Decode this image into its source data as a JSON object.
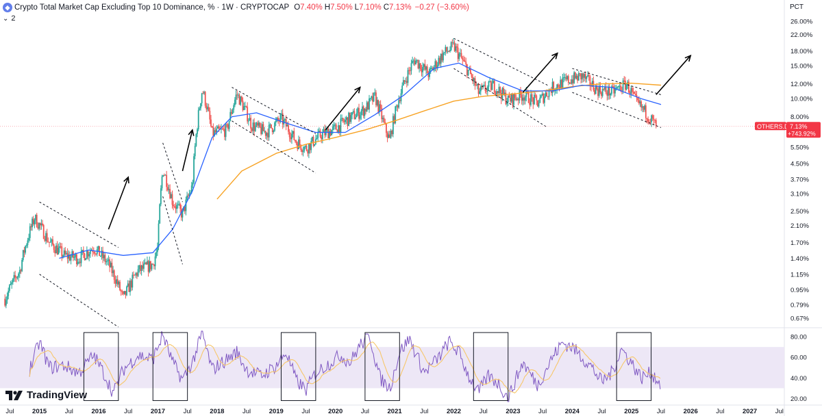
{
  "header": {
    "title": "Crypto Total Market Cap Excluding Top 10 Dominance, % · 1W · CRYPTOCAP",
    "o_label": "O",
    "o_value": "7.40%",
    "h_label": "H",
    "h_value": "7.50%",
    "l_label": "L",
    "l_value": "7.10%",
    "c_label": "C",
    "c_value": "7.13%",
    "change": "−0.27 (−3.60%)",
    "indicator_count": "2"
  },
  "price_scale": {
    "unit_label": "PCT",
    "ticks": [
      "26.00%",
      "22.00%",
      "18.00%",
      "15.00%",
      "12.00%",
      "10.00%",
      "8.00%",
      "6.50%",
      "5.50%",
      "4.50%",
      "3.70%",
      "3.10%",
      "2.50%",
      "2.10%",
      "1.70%",
      "1.40%",
      "1.15%",
      "0.95%",
      "0.79%",
      "0.67%"
    ]
  },
  "price_badge": {
    "symbol": "OTHERS.D",
    "value": "7.13%",
    "change": "+743.92%"
  },
  "rsi_scale": {
    "ticks": [
      "80.00",
      "60.00",
      "40.00",
      "20.00"
    ]
  },
  "time_axis": {
    "labels": [
      "Jul",
      "2015",
      "Jul",
      "2016",
      "Jul",
      "2017",
      "Jul",
      "2018",
      "Jul",
      "2019",
      "Jul",
      "2020",
      "Jul",
      "2021",
      "Jul",
      "2022",
      "Jul",
      "2023",
      "Jul",
      "2024",
      "Jul",
      "2025",
      "Jul",
      "2026",
      "Jul",
      "2027",
      "Jul"
    ]
  },
  "brand": {
    "name": "TradingView"
  },
  "colors": {
    "up": "#26a69a",
    "down": "#ef5350",
    "ma_fast": "#2962ff",
    "ma_slow": "#f7a325",
    "rsi": "#7e57c2",
    "rsi_ma": "#f7c76a",
    "rsi_band": "#ede7f6",
    "badge": "#f23645"
  },
  "chart_data": [
    {
      "type": "candlestick",
      "title": "Crypto Total Market Cap Excluding Top 10 Dominance, %",
      "y_scale": "log",
      "ylim": [
        0.6,
        28
      ],
      "x_range": [
        "2014-05",
        "2027-08"
      ],
      "anchors": [
        [
          "2014-06",
          0.85
        ],
        [
          "2014-09",
          1.2
        ],
        [
          "2014-12",
          2.3
        ],
        [
          "2015-03",
          1.7
        ],
        [
          "2015-06",
          1.45
        ],
        [
          "2015-09",
          1.4
        ],
        [
          "2015-12",
          1.6
        ],
        [
          "2016-03",
          1.3
        ],
        [
          "2016-06",
          0.85
        ],
        [
          "2016-09",
          1.2
        ],
        [
          "2016-12",
          1.3
        ],
        [
          "2017-01",
          1.6
        ],
        [
          "2017-02",
          4.2
        ],
        [
          "2017-04",
          2.8
        ],
        [
          "2017-06",
          2.4
        ],
        [
          "2017-08",
          3.4
        ],
        [
          "2017-10",
          11.2
        ],
        [
          "2017-12",
          6.5
        ],
        [
          "2018-03",
          6.8
        ],
        [
          "2018-05",
          10.6
        ],
        [
          "2018-08",
          7.2
        ],
        [
          "2018-11",
          6.6
        ],
        [
          "2019-02",
          7.8
        ],
        [
          "2019-05",
          5.9
        ],
        [
          "2019-07",
          5.4
        ],
        [
          "2019-10",
          6.4
        ],
        [
          "2020-01",
          6.9
        ],
        [
          "2020-03",
          7.6
        ],
        [
          "2020-07",
          8.8
        ],
        [
          "2020-09",
          10.2
        ],
        [
          "2020-11",
          7.0
        ],
        [
          "2020-12",
          6.0
        ],
        [
          "2021-02",
          10.3
        ],
        [
          "2021-05",
          16.2
        ],
        [
          "2021-08",
          13.5
        ],
        [
          "2021-11",
          17.5
        ],
        [
          "2022-01",
          19.0
        ],
        [
          "2022-03",
          15.5
        ],
        [
          "2022-06",
          10.8
        ],
        [
          "2022-09",
          11.8
        ],
        [
          "2022-12",
          9.8
        ],
        [
          "2023-03",
          10.5
        ],
        [
          "2023-06",
          9.5
        ],
        [
          "2023-09",
          11.5
        ],
        [
          "2023-12",
          12.5
        ],
        [
          "2024-03",
          13.2
        ],
        [
          "2024-06",
          11.2
        ],
        [
          "2024-09",
          10.8
        ],
        [
          "2024-12",
          12.0
        ],
        [
          "2025-02",
          9.5
        ],
        [
          "2025-04",
          8.4
        ],
        [
          "2025-06",
          7.13
        ]
      ],
      "ma_fast": [
        [
          "2015-05",
          1.4
        ],
        [
          "2015-11",
          1.55
        ],
        [
          "2016-06",
          1.45
        ],
        [
          "2016-12",
          1.5
        ],
        [
          "2017-04",
          2.0
        ],
        [
          "2017-08",
          3.2
        ],
        [
          "2017-12",
          6.2
        ],
        [
          "2018-04",
          8.0
        ],
        [
          "2018-09",
          8.4
        ],
        [
          "2019-03",
          7.4
        ],
        [
          "2019-09",
          6.6
        ],
        [
          "2020-03",
          6.6
        ],
        [
          "2020-09",
          8.2
        ],
        [
          "2021-03",
          10.5
        ],
        [
          "2021-09",
          14.5
        ],
        [
          "2022-02",
          15.5
        ],
        [
          "2022-08",
          13.0
        ],
        [
          "2023-03",
          11.0
        ],
        [
          "2023-09",
          11.0
        ],
        [
          "2024-03",
          11.8
        ],
        [
          "2024-09",
          11.5
        ],
        [
          "2025-03",
          10.0
        ],
        [
          "2025-07",
          9.3
        ]
      ],
      "ma_slow": [
        [
          "2018-01",
          2.9
        ],
        [
          "2018-06",
          4.1
        ],
        [
          "2019-01",
          5.1
        ],
        [
          "2019-07",
          5.7
        ],
        [
          "2020-01",
          6.2
        ],
        [
          "2020-07",
          6.8
        ],
        [
          "2021-01",
          7.6
        ],
        [
          "2021-07",
          8.6
        ],
        [
          "2022-01",
          9.7
        ],
        [
          "2022-07",
          10.3
        ],
        [
          "2023-01",
          10.6
        ],
        [
          "2023-07",
          11.0
        ],
        [
          "2024-01",
          11.6
        ],
        [
          "2024-07",
          12.0
        ],
        [
          "2025-01",
          12.1
        ],
        [
          "2025-07",
          11.8
        ]
      ],
      "channels": [
        {
          "start": "2015-01",
          "end": "2016-05",
          "top_start": 2.8,
          "top_end": 1.6,
          "bottom_start": 1.15,
          "bottom_end": 0.6
        },
        {
          "start": "2017-02",
          "end": "2017-06",
          "top_start": 5.8,
          "top_end": 2.8,
          "bottom_start": 3.0,
          "bottom_end": 1.3
        },
        {
          "start": "2018-04",
          "end": "2019-09",
          "top_start": 11.5,
          "top_end": 6.5,
          "bottom_start": 7.6,
          "bottom_end": 4.0
        },
        {
          "start": "2022-01",
          "end": "2023-08",
          "top_start": 21.0,
          "top_end": 11.8,
          "bottom_start": 14.5,
          "bottom_end": 7.0
        },
        {
          "start": "2024-01",
          "end": "2025-07",
          "top_start": 14.5,
          "top_end": 10.5,
          "bottom_start": 10.8,
          "bottom_end": 7.0
        }
      ],
      "arrows": [
        {
          "from": [
            "2016-03",
            2.0
          ],
          "to": [
            "2016-07",
            3.8
          ]
        },
        {
          "from": [
            "2017-06",
            4.1
          ],
          "to": [
            "2017-08",
            6.8
          ]
        },
        {
          "from": [
            "2019-11",
            6.8
          ],
          "to": [
            "2020-06",
            11.5
          ]
        },
        {
          "from": [
            "2023-03",
            10.8
          ],
          "to": [
            "2023-10",
            17.5
          ]
        },
        {
          "from": [
            "2025-06",
            10.5
          ],
          "to": [
            "2026-01",
            17.0
          ]
        }
      ]
    },
    {
      "type": "line",
      "name": "RSI",
      "ylim": [
        15,
        88
      ],
      "band": [
        30,
        70
      ],
      "anchors": [
        [
          "2014-11",
          48
        ],
        [
          "2015-01",
          75
        ],
        [
          "2015-03",
          50
        ],
        [
          "2015-06",
          52
        ],
        [
          "2015-09",
          45
        ],
        [
          "2015-12",
          62
        ],
        [
          "2016-02",
          45
        ],
        [
          "2016-04",
          25
        ],
        [
          "2016-06",
          48
        ],
        [
          "2016-09",
          62
        ],
        [
          "2016-12",
          58
        ],
        [
          "2017-02",
          82
        ],
        [
          "2017-04",
          55
        ],
        [
          "2017-06",
          38
        ],
        [
          "2017-08",
          55
        ],
        [
          "2017-10",
          83
        ],
        [
          "2017-12",
          48
        ],
        [
          "2018-03",
          58
        ],
        [
          "2018-05",
          65
        ],
        [
          "2018-07",
          48
        ],
        [
          "2018-10",
          42
        ],
        [
          "2019-01",
          52
        ],
        [
          "2019-03",
          65
        ],
        [
          "2019-05",
          38
        ],
        [
          "2019-07",
          28
        ],
        [
          "2019-09",
          45
        ],
        [
          "2019-12",
          55
        ],
        [
          "2020-02",
          62
        ],
        [
          "2020-04",
          55
        ],
        [
          "2020-06",
          72
        ],
        [
          "2020-08",
          80
        ],
        [
          "2020-10",
          40
        ],
        [
          "2020-12",
          30
        ],
        [
          "2021-02",
          65
        ],
        [
          "2021-04",
          78
        ],
        [
          "2021-07",
          45
        ],
        [
          "2021-10",
          60
        ],
        [
          "2021-12",
          75
        ],
        [
          "2022-02",
          65
        ],
        [
          "2022-04",
          42
        ],
        [
          "2022-06",
          26
        ],
        [
          "2022-08",
          42
        ],
        [
          "2022-10",
          35
        ],
        [
          "2022-12",
          20
        ],
        [
          "2023-03",
          55
        ],
        [
          "2023-06",
          33
        ],
        [
          "2023-09",
          60
        ],
        [
          "2023-11",
          74
        ],
        [
          "2024-01",
          70
        ],
        [
          "2024-03",
          60
        ],
        [
          "2024-05",
          50
        ],
        [
          "2024-07",
          36
        ],
        [
          "2024-09",
          45
        ],
        [
          "2024-11",
          68
        ],
        [
          "2025-01",
          55
        ],
        [
          "2025-03",
          40
        ],
        [
          "2025-05",
          45
        ],
        [
          "2025-07",
          34
        ]
      ],
      "highlight_boxes": [
        {
          "start": "2015-10",
          "end": "2016-05"
        },
        {
          "start": "2016-12",
          "end": "2017-07"
        },
        {
          "start": "2019-02",
          "end": "2019-09"
        },
        {
          "start": "2020-07",
          "end": "2021-02"
        },
        {
          "start": "2022-05",
          "end": "2022-12"
        },
        {
          "start": "2024-10",
          "end": "2025-05"
        }
      ]
    }
  ]
}
